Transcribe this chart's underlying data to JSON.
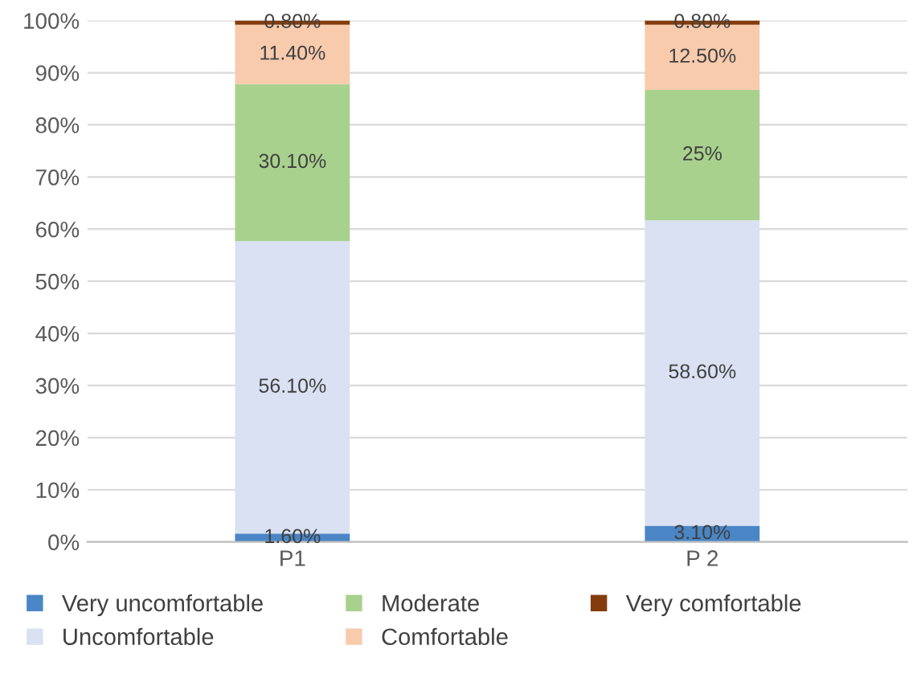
{
  "chart_data": {
    "type": "bar",
    "stacked": true,
    "categories": [
      "P1",
      "P 2"
    ],
    "series": [
      {
        "name": "Very uncomfortable",
        "color": "#4a86c6",
        "values": [
          1.6,
          3.1
        ],
        "value_labels": [
          "1.60%",
          "3.10%"
        ]
      },
      {
        "name": "Uncomfortable",
        "color": "#d9e1f2",
        "values": [
          56.1,
          58.6
        ],
        "value_labels": [
          "56.10%",
          "58.60%"
        ]
      },
      {
        "name": "Moderate",
        "color": "#a9d18e",
        "values": [
          30.1,
          25
        ],
        "value_labels": [
          "30.10%",
          "25%"
        ]
      },
      {
        "name": "Comfortable",
        "color": "#f8cbad",
        "values": [
          11.4,
          12.5
        ],
        "value_labels": [
          "11.40%",
          "12.50%"
        ]
      },
      {
        "name": "Very comfortable",
        "color": "#843c0c",
        "values": [
          0.8,
          0.8
        ],
        "value_labels": [
          "0.80%",
          "0.80%"
        ]
      }
    ],
    "ylim": [
      0,
      100
    ],
    "yticks": [
      {
        "value": 0,
        "label": "0%"
      },
      {
        "value": 10,
        "label": "10%"
      },
      {
        "value": 20,
        "label": "20%"
      },
      {
        "value": 30,
        "label": "30%"
      },
      {
        "value": 40,
        "label": "40%"
      },
      {
        "value": 50,
        "label": "50%"
      },
      {
        "value": 60,
        "label": "60%"
      },
      {
        "value": 70,
        "label": "70%"
      },
      {
        "value": 80,
        "label": "80%"
      },
      {
        "value": 90,
        "label": "90%"
      },
      {
        "value": 100,
        "label": "100%"
      }
    ],
    "grid": "y",
    "legend": "bottom"
  }
}
